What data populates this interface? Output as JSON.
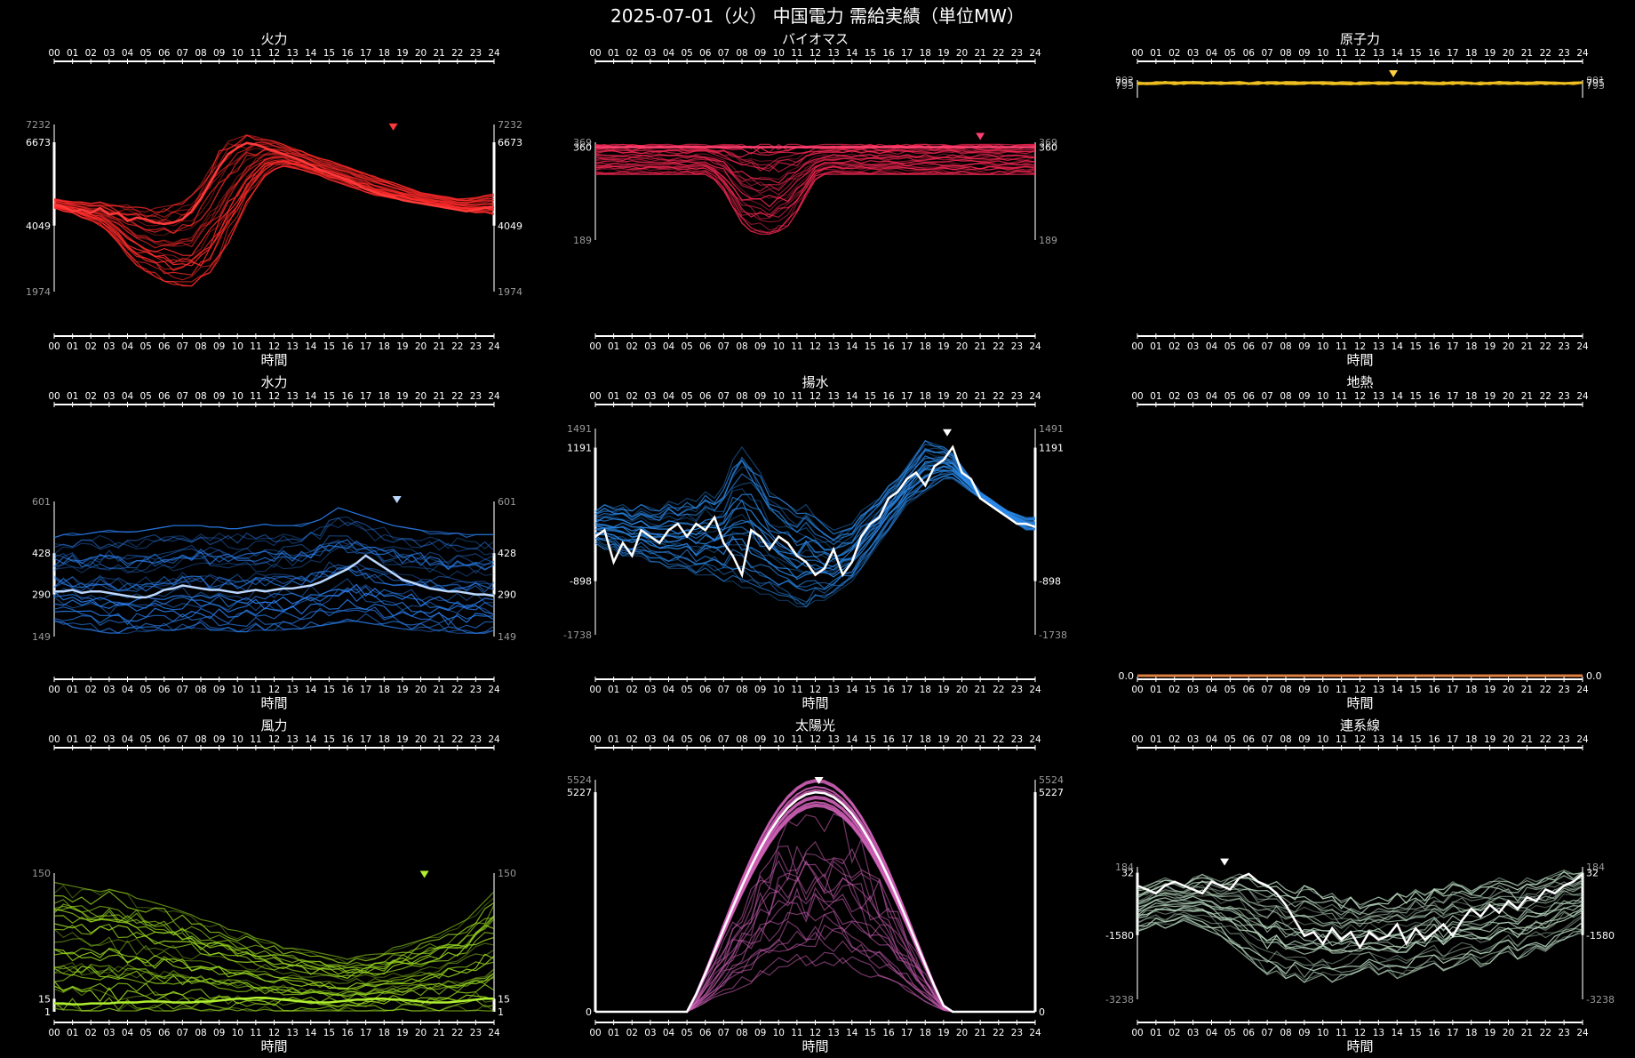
{
  "title": "2025-07-01（火） 中国電力 需給実績（単位MW）",
  "colors": {
    "background": "#000000",
    "axis": "#ffffff"
  },
  "chart_data": [
    {
      "type": "line",
      "title": "火力",
      "xlabel": "時間",
      "ymin": 1974,
      "ymax": 7232,
      "ylabels": [
        7232,
        6673,
        4049,
        1974
      ],
      "ylabels_highlight": [
        6673,
        4049
      ],
      "color": "#ff2a2a",
      "today_color": "#ff3a3a",
      "marker_hour": 18.5,
      "nseries": 28,
      "today": [
        4700,
        4650,
        4500,
        4550,
        4450,
        4600,
        4400,
        4450,
        4200,
        4300,
        4250,
        4150,
        4100,
        4150,
        4250,
        4500,
        4900,
        5400,
        5900,
        6300,
        6500,
        6650,
        6600,
        6500,
        6400,
        6300,
        6200,
        6100,
        5950,
        5800,
        5700,
        5600,
        5500,
        5350,
        5200,
        5100,
        5000,
        4950,
        4850,
        4800,
        4750,
        4700,
        4650,
        4600,
        4550,
        4500,
        4550,
        4600,
        4650
      ],
      "low": [
        4600,
        4500,
        4450,
        4300,
        4200,
        4050,
        3800,
        3500,
        3100,
        2800,
        2600,
        2450,
        2300,
        2200,
        2150,
        2150,
        2250,
        2500,
        2900,
        3500,
        4100,
        4700,
        5200,
        5600,
        5800,
        5900,
        5850,
        5800,
        5700,
        5600,
        5500,
        5400,
        5300,
        5200,
        5100,
        5000,
        4950,
        4900,
        4850,
        4800,
        4750,
        4700,
        4650,
        4600,
        4550,
        4500,
        4450,
        4450,
        4400
      ],
      "high": [
        4900,
        4850,
        4800,
        4800,
        4750,
        4800,
        4750,
        4700,
        4700,
        4650,
        4600,
        4600,
        4650,
        4700,
        4800,
        5000,
        5400,
        5900,
        6400,
        6700,
        6800,
        6900,
        6850,
        6800,
        6700,
        6600,
        6500,
        6400,
        6300,
        6200,
        6100,
        6000,
        5900,
        5800,
        5700,
        5600,
        5500,
        5400,
        5300,
        5200,
        5100,
        5050,
        5000,
        4950,
        4900,
        4900,
        4950,
        5000,
        5050
      ]
    },
    {
      "type": "line",
      "title": "バイオマス",
      "xlabel": "",
      "ymin": 189,
      "ymax": 369,
      "ylabels": [
        369,
        360,
        189
      ],
      "ylabels_highlight": [
        360
      ],
      "color": "#ff2855",
      "today_color": "#ff4070",
      "marker_hour": 21,
      "nseries": 28,
      "today": [
        360,
        360,
        360,
        360,
        360,
        360,
        360,
        360,
        360,
        360,
        360,
        360,
        360,
        360,
        360,
        360,
        360,
        360,
        360,
        360,
        360,
        360,
        360,
        360,
        360,
        360,
        360,
        360,
        360,
        360,
        360,
        360,
        360,
        360,
        360,
        360,
        360,
        360,
        360,
        360,
        360,
        360,
        360,
        360,
        360,
        360,
        360,
        360,
        360
      ],
      "low": [
        310,
        310,
        310,
        310,
        310,
        310,
        310,
        310,
        310,
        310,
        310,
        310,
        310,
        300,
        280,
        250,
        220,
        205,
        200,
        200,
        205,
        215,
        240,
        270,
        300,
        310,
        310,
        310,
        310,
        310,
        310,
        310,
        310,
        310,
        310,
        310,
        310,
        310,
        310,
        310,
        310,
        310,
        310,
        310,
        310,
        310,
        310,
        310,
        310
      ],
      "high": [
        365,
        365,
        365,
        365,
        365,
        365,
        365,
        365,
        365,
        365,
        365,
        365,
        365,
        365,
        365,
        365,
        365,
        365,
        365,
        365,
        365,
        365,
        365,
        365,
        365,
        365,
        365,
        365,
        365,
        365,
        365,
        365,
        365,
        365,
        365,
        365,
        365,
        365,
        365,
        365,
        365,
        365,
        365,
        365,
        365,
        365,
        365,
        365,
        365
      ]
    },
    {
      "type": "line",
      "title": "原子力",
      "xlabel": "時間",
      "ymin": 793,
      "ymax": 802,
      "ylabels": [
        802,
        795,
        793
      ],
      "ylabels_highlight": [
        795
      ],
      "right_labels": [
        801,
        795,
        793
      ],
      "color": "#f0c020",
      "today_color": "#ffd040",
      "marker_hour": 13.8,
      "nseries": 1,
      "flat_top": true,
      "today": [],
      "low": [],
      "high": []
    },
    {
      "type": "line",
      "title": "水力",
      "xlabel": "時間",
      "ymin": 149,
      "ymax": 601,
      "ylabels": [
        601,
        428,
        290,
        149
      ],
      "ylabels_highlight": [
        428,
        290
      ],
      "color": "#2a7ff0",
      "today_color": "#bcd8ff",
      "marker_hour": 18.7,
      "nseries": 28,
      "today": [
        300,
        300,
        305,
        295,
        300,
        300,
        295,
        290,
        285,
        280,
        280,
        290,
        305,
        310,
        320,
        315,
        310,
        305,
        305,
        300,
        295,
        300,
        305,
        300,
        305,
        310,
        310,
        315,
        320,
        330,
        345,
        360,
        375,
        395,
        420,
        400,
        380,
        360,
        340,
        330,
        320,
        310,
        305,
        300,
        300,
        295,
        290,
        290,
        285
      ],
      "low": [
        200,
        190,
        180,
        175,
        170,
        165,
        160,
        160,
        160,
        160,
        165,
        170,
        170,
        170,
        175,
        175,
        175,
        170,
        170,
        165,
        165,
        165,
        170,
        170,
        170,
        170,
        175,
        175,
        180,
        185,
        190,
        195,
        200,
        200,
        195,
        190,
        185,
        180,
        175,
        170,
        170,
        165,
        165,
        160,
        160,
        160,
        160,
        160,
        160
      ],
      "high": [
        480,
        490,
        495,
        490,
        495,
        500,
        505,
        500,
        500,
        500,
        505,
        510,
        515,
        520,
        520,
        520,
        520,
        515,
        515,
        510,
        510,
        515,
        520,
        525,
        520,
        520,
        520,
        525,
        530,
        540,
        560,
        580,
        570,
        560,
        550,
        540,
        530,
        520,
        515,
        510,
        505,
        500,
        500,
        495,
        495,
        490,
        490,
        490,
        490
      ]
    },
    {
      "type": "line",
      "title": "揚水",
      "xlabel": "時間",
      "ymin": -1738,
      "ymax": 1491,
      "ylabels": [
        1491,
        1191,
        -898,
        -1738
      ],
      "ylabels_highlight": [
        1191,
        -898
      ],
      "color": "#2a88e8",
      "today_color": "#ffffff",
      "marker_hour": 19.2,
      "nseries": 28,
      "today": [
        -200,
        -100,
        -600,
        -300,
        -500,
        -100,
        -200,
        -300,
        -100,
        0,
        -200,
        0,
        -100,
        100,
        -300,
        -500,
        -800,
        -100,
        -200,
        -400,
        -200,
        -300,
        -500,
        -600,
        -800,
        -700,
        -400,
        -800,
        -600,
        -200,
        0,
        100,
        400,
        500,
        700,
        800,
        600,
        900,
        1000,
        1200,
        800,
        700,
        400,
        300,
        200,
        100,
        0,
        0,
        -50
      ],
      "low": [
        -300,
        -400,
        -400,
        -500,
        -500,
        -500,
        -600,
        -600,
        -700,
        -700,
        -700,
        -800,
        -800,
        -800,
        -900,
        -900,
        -1000,
        -1000,
        -1100,
        -1100,
        -1200,
        -1200,
        -1300,
        -1300,
        -1200,
        -1200,
        -1100,
        -1000,
        -900,
        -700,
        -500,
        -300,
        -100,
        100,
        300,
        400,
        500,
        600,
        700,
        700,
        600,
        500,
        400,
        300,
        200,
        100,
        0,
        -100,
        -100
      ],
      "high": [
        200,
        300,
        250,
        300,
        200,
        300,
        250,
        200,
        350,
        300,
        400,
        350,
        500,
        400,
        600,
        1000,
        1200,
        1000,
        800,
        500,
        400,
        300,
        200,
        300,
        100,
        0,
        -100,
        -50,
        0,
        200,
        300,
        400,
        600,
        700,
        900,
        1100,
        1300,
        1250,
        1200,
        1100,
        900,
        700,
        500,
        400,
        300,
        200,
        150,
        100,
        100
      ]
    },
    {
      "type": "line",
      "title": "地熱",
      "xlabel": "時間",
      "ymin": 0,
      "ymax": 0,
      "ylabels": [
        "0.0"
      ],
      "ylabels_highlight": [
        "0.0"
      ],
      "color": "#e08040",
      "today_color": "#e08040",
      "marker_hour": null,
      "nseries": 1,
      "flat_bottom": true,
      "today": [],
      "low": [],
      "high": []
    },
    {
      "type": "line",
      "title": "風力",
      "xlabel": "時間",
      "ymin": 1,
      "ymax": 150,
      "ylabels": [
        150,
        15,
        1
      ],
      "ylabels_highlight": [
        15,
        1
      ],
      "color": "#98d820",
      "today_color": "#b0f030",
      "marker_hour": 20.2,
      "nseries": 28,
      "today": [
        10,
        10,
        9,
        9,
        10,
        10,
        10,
        11,
        11,
        11,
        12,
        12,
        12,
        11,
        11,
        11,
        12,
        12,
        13,
        14,
        15,
        15,
        16,
        16,
        15,
        14,
        13,
        12,
        11,
        11,
        11,
        12,
        13,
        14,
        14,
        15,
        15,
        14,
        14,
        13,
        12,
        11,
        11,
        11,
        12,
        13,
        14,
        15,
        15
      ],
      "low": [
        3,
        3,
        3,
        2,
        2,
        2,
        2,
        2,
        2,
        2,
        2,
        2,
        2,
        2,
        2,
        2,
        2,
        2,
        2,
        2,
        2,
        2,
        2,
        2,
        2,
        2,
        2,
        2,
        2,
        2,
        2,
        2,
        2,
        2,
        2,
        2,
        2,
        2,
        2,
        2,
        2,
        2,
        2,
        2,
        2,
        2,
        2,
        2,
        2
      ],
      "high": [
        140,
        138,
        136,
        134,
        132,
        133,
        135,
        130,
        128,
        125,
        122,
        118,
        115,
        112,
        110,
        105,
        100,
        98,
        95,
        90,
        88,
        85,
        80,
        78,
        75,
        72,
        70,
        68,
        66,
        64,
        62,
        60,
        58,
        60,
        62,
        64,
        66,
        70,
        72,
        75,
        78,
        82,
        85,
        90,
        95,
        100,
        110,
        120,
        130
      ]
    },
    {
      "type": "line",
      "title": "太陽光",
      "xlabel": "時間",
      "ymin": 0,
      "ymax": 5524,
      "ylabels": [
        5524,
        5227,
        0
      ],
      "ylabels_highlight": [
        5227,
        0
      ],
      "color": "#d060b8",
      "today_color": "#ffffff",
      "marker_hour": 12.2,
      "nseries": 28,
      "solar": true,
      "today": [],
      "low": [],
      "high": []
    },
    {
      "type": "line",
      "title": "連系線",
      "xlabel": "時間",
      "ymin": -3238,
      "ymax": 184,
      "ylabels": [
        184,
        32,
        -1580,
        -3238
      ],
      "ylabels_highlight": [
        32,
        -1580
      ],
      "color": "#b8d8c0",
      "today_color": "#ffffff",
      "marker_hour": 4.7,
      "nseries": 28,
      "today": [
        -300,
        -400,
        -500,
        -300,
        -200,
        -300,
        -400,
        -500,
        -200,
        -300,
        -400,
        -100,
        0,
        -200,
        -300,
        -500,
        -800,
        -1200,
        -1600,
        -1500,
        -1800,
        -1400,
        -1700,
        -1500,
        -1900,
        -1500,
        -1700,
        -1600,
        -1300,
        -1800,
        -1400,
        -1700,
        -1500,
        -1300,
        -1600,
        -1200,
        -900,
        -1100,
        -800,
        -1000,
        -700,
        -900,
        -600,
        -700,
        -400,
        -500,
        -300,
        -200,
        0
      ],
      "low": [
        -1500,
        -1400,
        -1300,
        -1400,
        -1300,
        -1200,
        -1300,
        -1400,
        -1500,
        -1600,
        -1800,
        -2000,
        -2200,
        -2400,
        -2600,
        -2500,
        -2700,
        -2600,
        -2800,
        -2700,
        -2600,
        -2800,
        -2700,
        -2600,
        -2500,
        -2400,
        -2600,
        -2500,
        -2700,
        -2600,
        -2500,
        -2400,
        -2300,
        -2500,
        -2400,
        -2300,
        -2200,
        -2400,
        -2300,
        -2100,
        -2000,
        -2200,
        -2100,
        -1900,
        -2000,
        -1800,
        -1700,
        -1600,
        -1500
      ],
      "high": [
        -400,
        -300,
        -200,
        -100,
        -200,
        -300,
        -100,
        0,
        -100,
        -200,
        -100,
        0,
        -100,
        -200,
        -300,
        -200,
        -400,
        -500,
        -300,
        -400,
        -600,
        -500,
        -700,
        -600,
        -800,
        -700,
        -600,
        -700,
        -500,
        -600,
        -400,
        -500,
        -300,
        -400,
        -200,
        -300,
        -400,
        -300,
        -200,
        -100,
        -200,
        -300,
        -100,
        -200,
        -100,
        0,
        100,
        0,
        100
      ]
    }
  ]
}
